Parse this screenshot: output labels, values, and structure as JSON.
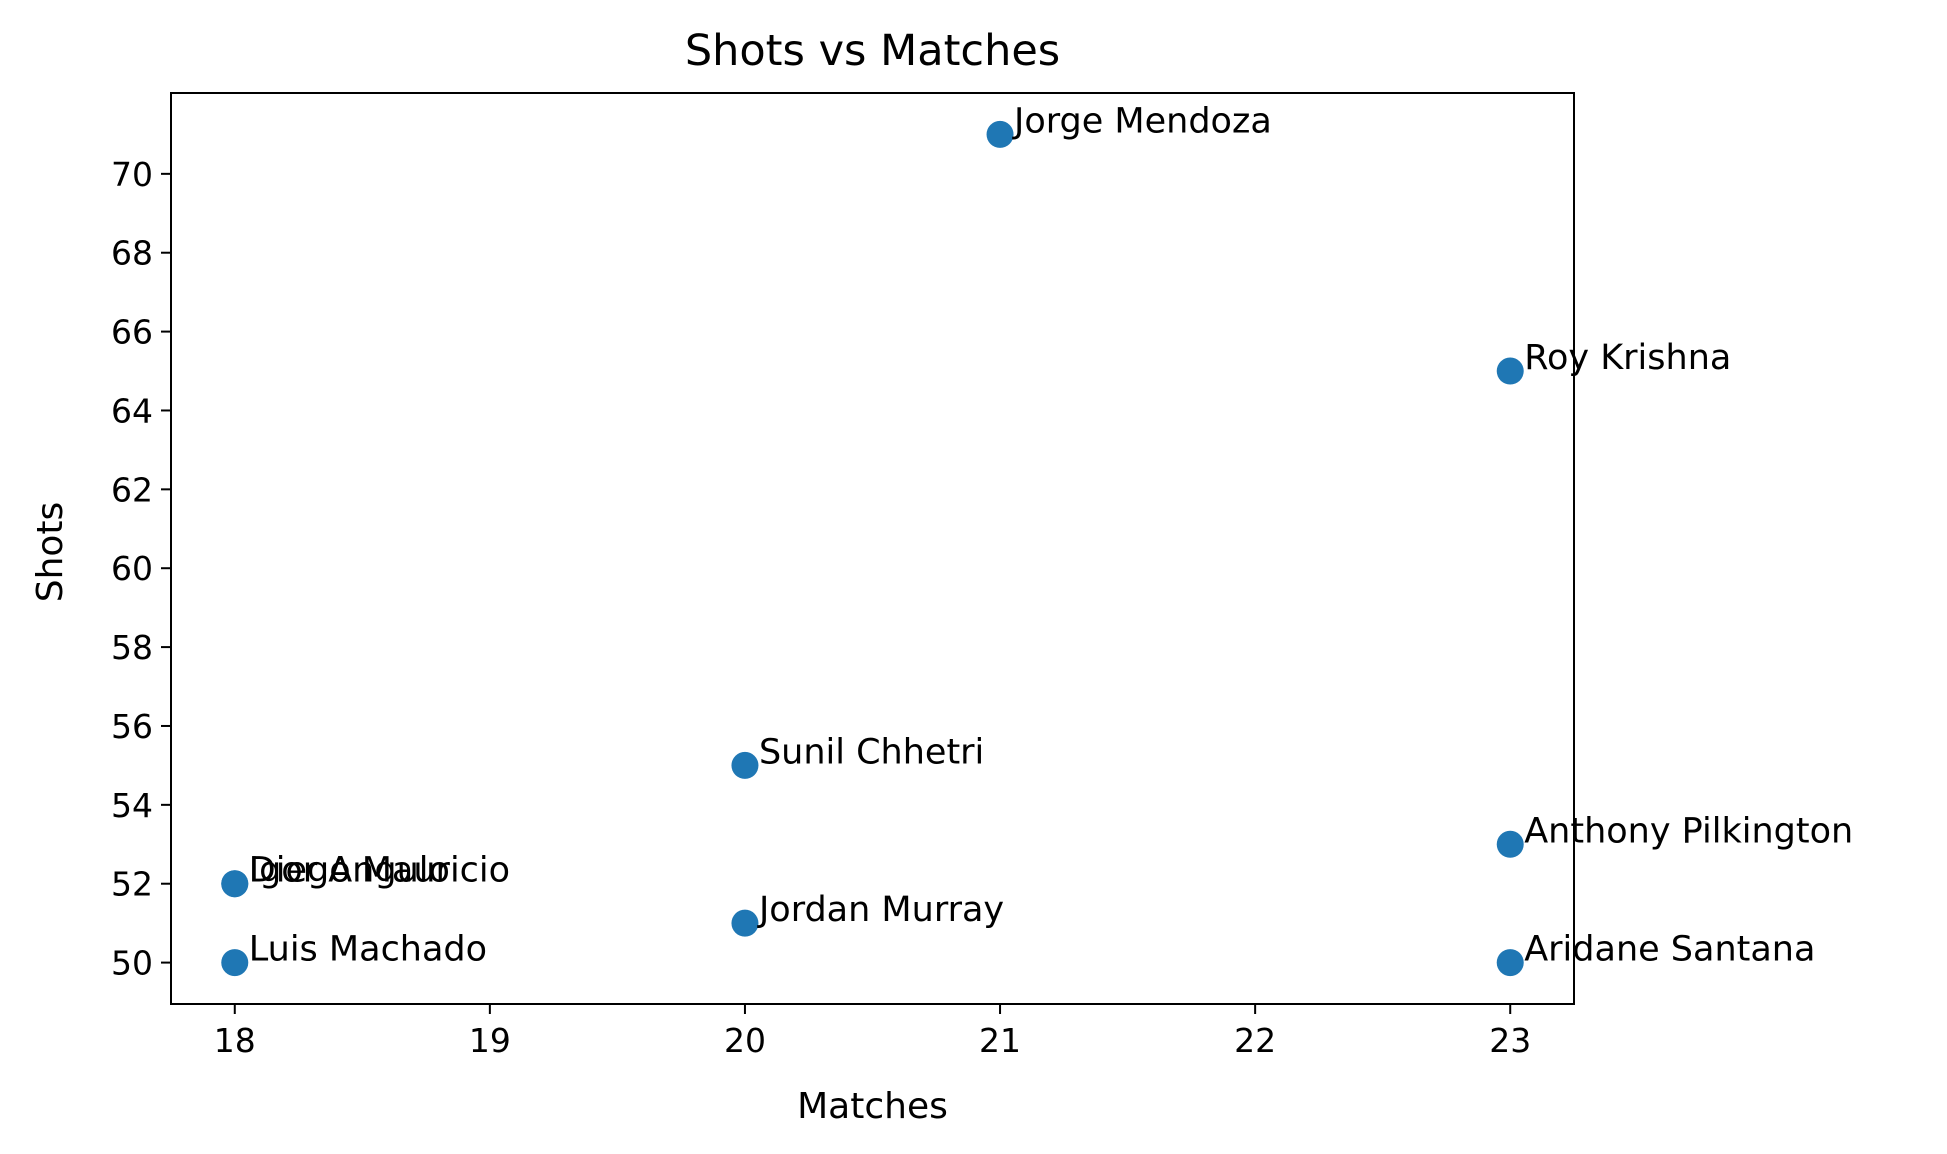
{
  "chart_data": {
    "type": "scatter",
    "title": "Shots vs Matches",
    "xlabel": "Matches",
    "ylabel": "Shots",
    "xlim": [
      17.75,
      23.25
    ],
    "ylim": [
      48.95,
      72.05
    ],
    "xticks": [
      18,
      19,
      20,
      21,
      22,
      23
    ],
    "yticks": [
      50,
      52,
      54,
      56,
      58,
      60,
      62,
      64,
      66,
      68,
      70
    ],
    "grid": false,
    "marker_color": "#1f77b4",
    "points": [
      {
        "label": "Sunil Chhetri",
        "x": 20,
        "y": 55
      },
      {
        "label": "Roy Krishna",
        "x": 23,
        "y": 65
      },
      {
        "label": "Jorge Mendoza",
        "x": 21,
        "y": 71
      },
      {
        "label": "Igor Angulo",
        "x": 18,
        "y": 52
      },
      {
        "label": "Anthony Pilkington",
        "x": 23,
        "y": 53
      },
      {
        "label": "Diego Mauricio",
        "x": 18,
        "y": 52
      },
      {
        "label": "Aridane Santana",
        "x": 23,
        "y": 50
      },
      {
        "label": "Jordan Murray",
        "x": 20,
        "y": 51
      },
      {
        "label": "Luis Machado",
        "x": 18,
        "y": 50
      }
    ]
  }
}
